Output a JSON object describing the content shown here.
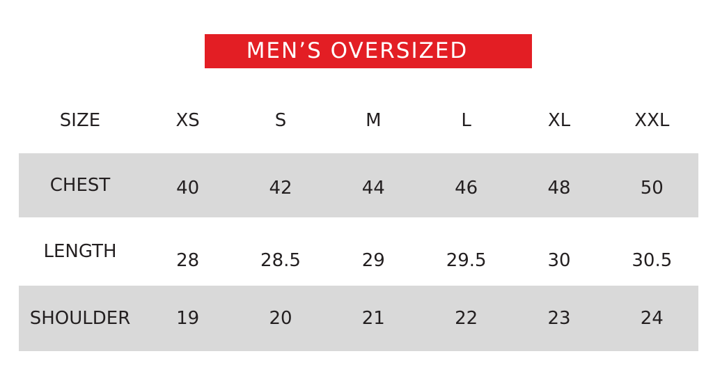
{
  "banner": {
    "label": "MEN’S OVERSIZED",
    "background_color": "#E31E24",
    "text_color": "#FFFFFF"
  },
  "chart_data": {
    "type": "table",
    "title": "MEN’S OVERSIZED",
    "columns": [
      "SIZE",
      "XS",
      "S",
      "M",
      "L",
      "XL",
      "XXL"
    ],
    "rows": [
      {
        "label": "CHEST",
        "values": [
          40,
          42,
          44,
          46,
          48,
          50
        ],
        "shaded": true
      },
      {
        "label": "LENGTH",
        "values": [
          28,
          28.5,
          29,
          29.5,
          30,
          30.5
        ],
        "shaded": false
      },
      {
        "label": "SHOULDER",
        "values": [
          19,
          20,
          21,
          22,
          23,
          24
        ],
        "shaded": true
      }
    ],
    "layout": {
      "shaded_row_color": "#D9D9D9",
      "text_color": "#231F20",
      "grid": "off",
      "borders": "none"
    }
  }
}
